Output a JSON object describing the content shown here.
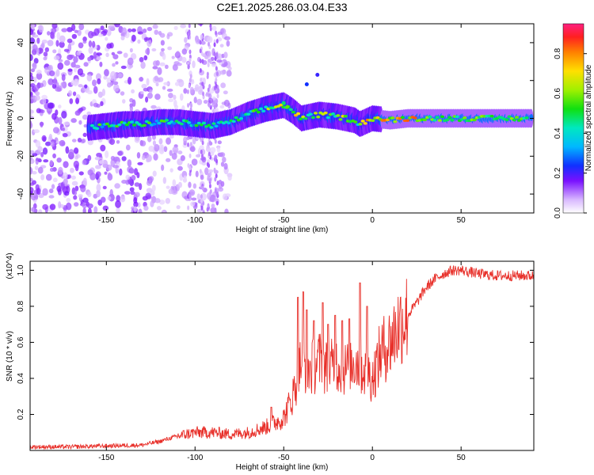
{
  "title": "C2E1.2025.286.03.04.E33",
  "chart_data": [
    {
      "type": "heatmap",
      "title": "C2E1.2025.286.03.04.E33",
      "xlabel": "Height of straight line (km)",
      "ylabel": "Frequency (Hz)",
      "xlim": [
        -193,
        91
      ],
      "ylim": [
        -50,
        50
      ],
      "xticks": [
        -150,
        -100,
        -50,
        0,
        50
      ],
      "yticks": [
        -40,
        -20,
        0,
        20,
        40
      ],
      "colorbar": {
        "label": "Normalized spectral amplitude",
        "range": [
          0.0,
          0.95
        ],
        "ticks": [
          0.0,
          0.2,
          0.4,
          0.6,
          0.8
        ]
      },
      "ridge": {
        "description": "frequency centre of strong band vs height",
        "x": [
          -160,
          -150,
          -140,
          -130,
          -120,
          -110,
          -100,
          -90,
          -80,
          -70,
          -60,
          -50,
          -45,
          -40,
          -30,
          -20,
          -10,
          -7,
          0,
          10,
          20,
          50,
          90
        ],
        "y": [
          -5,
          -4,
          -3,
          -3,
          -2,
          -2,
          -3,
          -4,
          -2,
          2,
          5,
          7,
          4,
          0,
          2,
          1,
          -1,
          -3,
          0,
          -1,
          0,
          0,
          0
        ],
        "peak_amplitude": 0.9
      },
      "noise_region_x": [
        -193,
        -80
      ]
    },
    {
      "type": "line",
      "xlabel": "Height of straight line (km)",
      "ylabel": "SNR (10 * v/v)",
      "y_multiplier": "(x10^4)",
      "xlim": [
        -193,
        91
      ],
      "ylim": [
        0,
        1.05
      ],
      "xticks": [
        -150,
        -100,
        -50,
        0,
        50
      ],
      "yticks": [
        0.2,
        0.4,
        0.6,
        0.8,
        1.0
      ],
      "series": [
        {
          "name": "SNR",
          "color": "#e8302a",
          "x": [
            -193,
            -170,
            -150,
            -130,
            -120,
            -110,
            -100,
            -90,
            -80,
            -70,
            -60,
            -50,
            -45,
            -40,
            -35,
            -30,
            -25,
            -20,
            -15,
            -10,
            -5,
            0,
            5,
            10,
            15,
            20,
            25,
            30,
            35,
            40,
            45,
            50,
            55,
            60,
            70,
            80,
            91
          ],
          "values": [
            0.02,
            0.02,
            0.025,
            0.03,
            0.05,
            0.08,
            0.1,
            0.1,
            0.09,
            0.1,
            0.13,
            0.18,
            0.3,
            0.5,
            0.45,
            0.5,
            0.45,
            0.48,
            0.45,
            0.5,
            0.45,
            0.4,
            0.55,
            0.6,
            0.7,
            0.75,
            0.82,
            0.9,
            0.95,
            0.98,
            1.0,
            1.0,
            0.99,
            0.98,
            0.97,
            0.97,
            0.97
          ]
        }
      ],
      "spikes": {
        "x": [
          -57,
          -42,
          -39,
          -37,
          -33,
          -28,
          -25,
          -21,
          -17,
          -13,
          -7,
          -3
        ],
        "values": [
          0.24,
          0.85,
          0.88,
          0.78,
          0.72,
          0.82,
          0.7,
          0.75,
          0.72,
          0.73,
          0.93,
          0.8
        ]
      }
    }
  ]
}
